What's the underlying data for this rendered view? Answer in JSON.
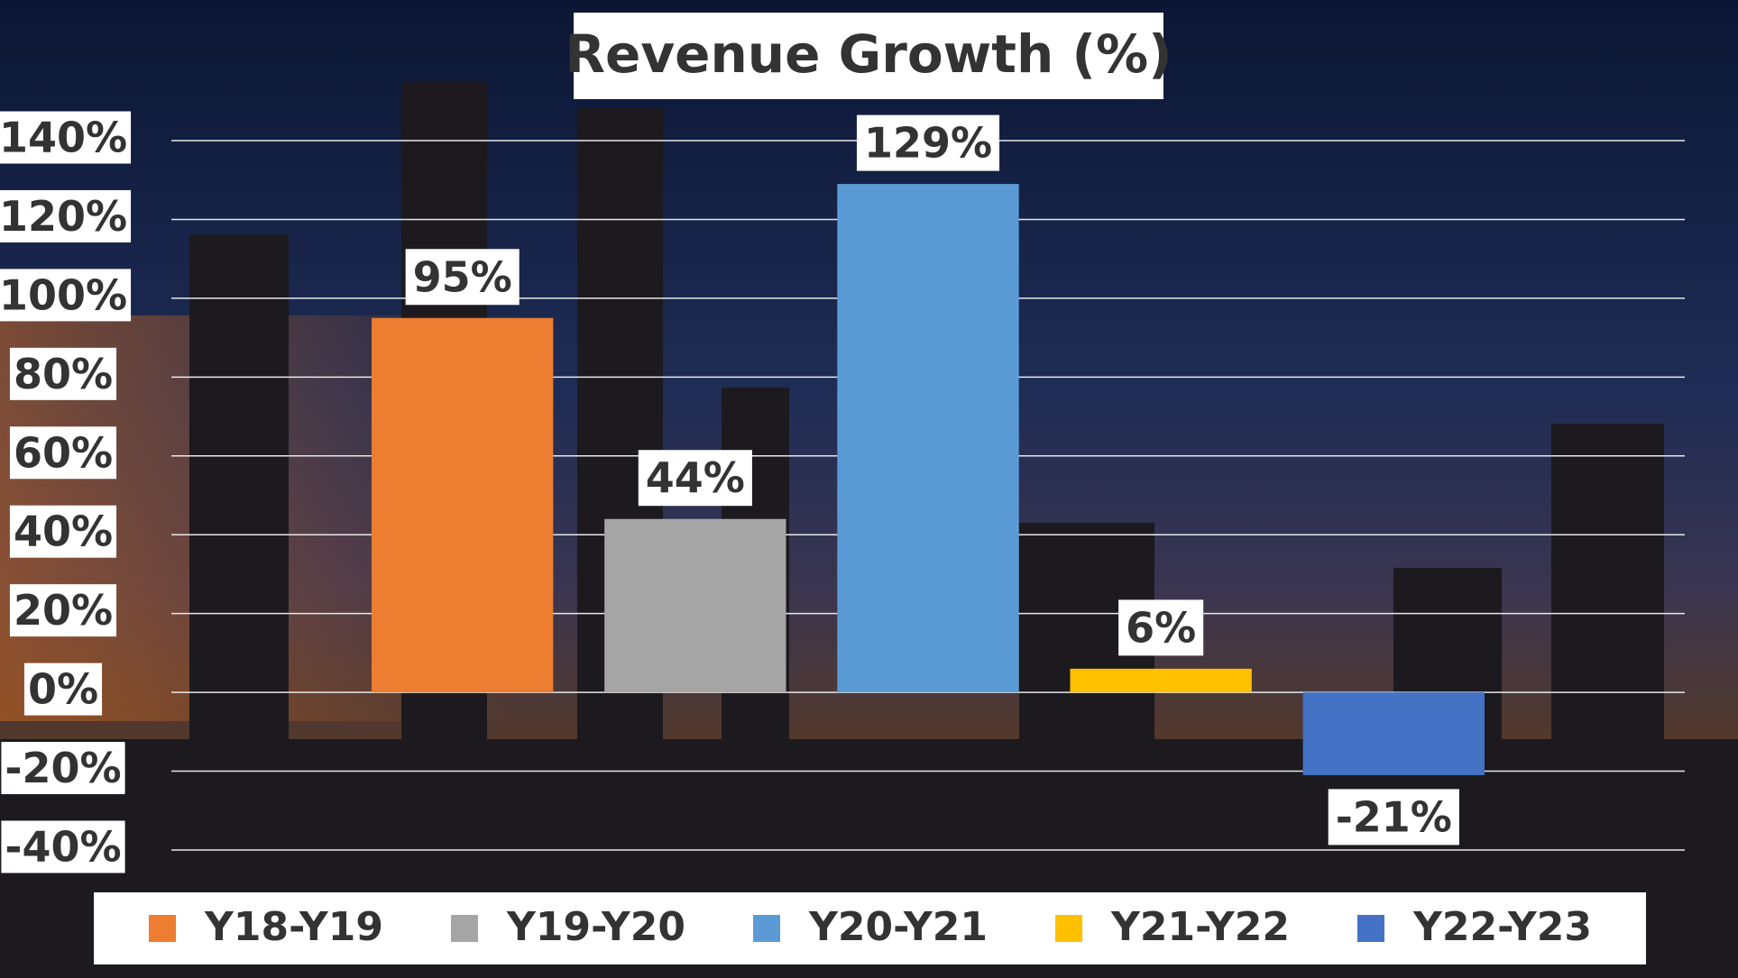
{
  "chart_data": {
    "type": "bar",
    "title": "Revenue Growth (%)",
    "series": [
      {
        "name": "Y18-Y19",
        "color": "#ed7d31",
        "values": [
          95
        ],
        "value_labels": [
          "95%"
        ]
      },
      {
        "name": "Y19-Y20",
        "color": "#a5a5a5",
        "values": [
          44
        ],
        "value_labels": [
          "44%"
        ]
      },
      {
        "name": "Y20-Y21",
        "color": "#5b9bd5",
        "values": [
          129
        ],
        "value_labels": [
          "129%"
        ]
      },
      {
        "name": "Y21-Y22",
        "color": "#ffc000",
        "values": [
          6
        ],
        "value_labels": [
          "6%"
        ]
      },
      {
        "name": "Y22-Y23",
        "color": "#4472c4",
        "values": [
          -21
        ],
        "value_labels": [
          "-21%"
        ]
      }
    ],
    "ylim": [
      -40,
      140
    ],
    "yticks": [
      {
        "value": -40,
        "label": "-40%"
      },
      {
        "value": -20,
        "label": "-20%"
      },
      {
        "value": 0,
        "label": "0%"
      },
      {
        "value": 20,
        "label": "20%"
      },
      {
        "value": 40,
        "label": "40%"
      },
      {
        "value": 60,
        "label": "60%"
      },
      {
        "value": 80,
        "label": "80%"
      },
      {
        "value": 100,
        "label": "100%"
      },
      {
        "value": 120,
        "label": "120%"
      },
      {
        "value": 140,
        "label": "140%"
      }
    ],
    "grid": true,
    "legend": "bottom"
  }
}
